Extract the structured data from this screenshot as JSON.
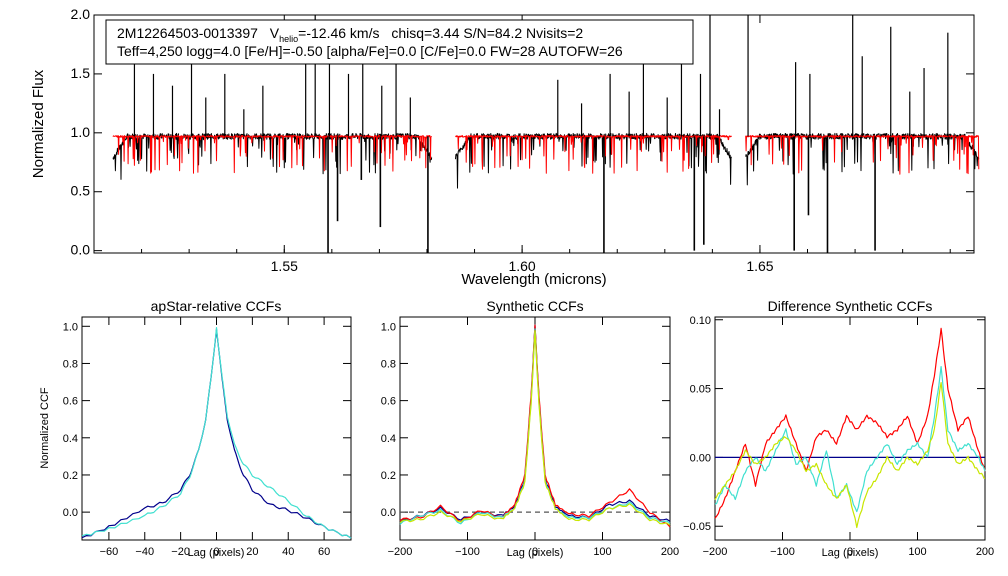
{
  "chart_data": [
    {
      "id": "spectrum",
      "type": "line",
      "xlabel": "Wavelength (microns)",
      "ylabel": "Normalized Flux",
      "xlim": [
        1.51,
        1.695
      ],
      "ylim": [
        -0.02,
        2.0
      ],
      "xticks": [
        "1.55",
        "1.60",
        "1.65"
      ],
      "yticks": [
        "0.0",
        "0.5",
        "1.0",
        "1.5",
        "2.0"
      ],
      "annotation": {
        "star": "2M12264503-0013397",
        "v_prefix": "V",
        "v_sub": "helio",
        "v_value": "=-12.46 km/s",
        "rest": "chisq=3.44  S/N=84.2  Nvisits=2",
        "params": "Teff=4,250 logg=4.0 [Fe/H]=-0.50 [alpha/Fe]=0.0 [C/Fe]=0.0 FW=28 AUTOFW=26"
      },
      "detectors": [
        [
          1.514,
          1.581
        ],
        [
          1.586,
          1.644
        ],
        [
          1.647,
          1.696
        ]
      ],
      "series": [
        {
          "name": "observed",
          "color": "#000000",
          "continuum": 0.97
        },
        {
          "name": "model",
          "color": "#ff0000",
          "continuum": 0.97
        }
      ],
      "emission_spikes": [
        1.5185,
        1.5225,
        1.5265,
        1.5305,
        1.5335,
        1.5375,
        1.5415,
        1.5455,
        1.5545,
        1.5565,
        1.5595,
        1.5635,
        1.5665,
        1.5705,
        1.5735,
        1.5765,
        1.6075,
        1.6125,
        1.6185,
        1.6225,
        1.6255,
        1.6305,
        1.6335,
        1.6375,
        1.6395,
        1.6415,
        1.6475,
        1.6575,
        1.6605,
        1.6695,
        1.6715,
        1.6775,
        1.6815,
        1.6845,
        1.6895
      ],
      "spike_heights": [
        1.9,
        1.5,
        1.4,
        1.8,
        1.3,
        1.5,
        1.2,
        1.4,
        1.7,
        2.0,
        1.6,
        1.5,
        1.8,
        1.4,
        1.7,
        1.3,
        1.45,
        1.25,
        1.5,
        1.35,
        1.9,
        1.3,
        1.7,
        1.5,
        2.0,
        1.2,
        2.0,
        1.6,
        1.5,
        2.0,
        1.65,
        1.9,
        1.35,
        1.55,
        1.85
      ],
      "absorption_dips": [
        1.5592,
        1.5612,
        1.5662,
        1.5702,
        1.5802,
        1.6172,
        1.6362,
        1.6382,
        1.6572,
        1.6602,
        1.6642,
        1.6742
      ],
      "dip_depths": [
        -0.02,
        0.25,
        0.6,
        0.2,
        -0.02,
        -0.02,
        0.0,
        0.05,
        0.0,
        0.3,
        -0.02,
        0.0
      ]
    },
    {
      "id": "apstar_ccf",
      "type": "line",
      "title": "apStar-relative CCFs",
      "xlabel": "Lag (pixels)",
      "ylabel": "Normalized CCF",
      "xlim": [
        -75,
        75
      ],
      "ylim": [
        -0.15,
        1.05
      ],
      "xticks": [
        -60,
        -40,
        -20,
        0,
        20,
        40,
        60
      ],
      "yticks": [
        0.0,
        0.2,
        0.4,
        0.6,
        0.8,
        1.0
      ],
      "series": [
        {
          "name": "ccf_a",
          "color": "#00008b",
          "x": [
            -75,
            -60,
            -40,
            -30,
            -20,
            -15,
            -10,
            -6,
            -3,
            -1,
            0,
            1,
            3,
            6,
            10,
            15,
            20,
            30,
            40,
            50,
            60,
            75
          ],
          "y": [
            -0.14,
            -0.08,
            0.02,
            0.05,
            0.12,
            0.2,
            0.33,
            0.5,
            0.72,
            0.9,
            0.99,
            0.9,
            0.72,
            0.5,
            0.33,
            0.2,
            0.12,
            0.04,
            0.01,
            -0.03,
            -0.08,
            -0.14
          ]
        },
        {
          "name": "ccf_b",
          "color": "#40e0d0",
          "x": [
            -75,
            -60,
            -40,
            -30,
            -20,
            -15,
            -10,
            -6,
            -3,
            -1,
            0,
            1,
            3,
            6,
            10,
            15,
            20,
            30,
            40,
            50,
            60,
            75
          ],
          "y": [
            -0.13,
            -0.09,
            -0.02,
            0.03,
            0.1,
            0.19,
            0.33,
            0.5,
            0.72,
            0.9,
            1.0,
            0.9,
            0.73,
            0.52,
            0.36,
            0.26,
            0.2,
            0.13,
            0.06,
            -0.02,
            -0.08,
            -0.14
          ]
        }
      ]
    },
    {
      "id": "synthetic_ccf",
      "type": "line",
      "title": "Synthetic CCFs",
      "xlabel": "Lag (pixels)",
      "xlim": [
        -200,
        200
      ],
      "ylim": [
        -0.15,
        1.05
      ],
      "xticks": [
        -200,
        -100,
        0,
        100,
        200
      ],
      "yticks": [
        0.0,
        0.2,
        0.4,
        0.6,
        0.8,
        1.0
      ],
      "baseline": 0.0,
      "series": [
        {
          "name": "s1",
          "color": "#00008b",
          "x": [
            -200,
            -170,
            -140,
            -110,
            -80,
            -50,
            -30,
            -15,
            -6,
            0,
            6,
            15,
            30,
            50,
            80,
            110,
            140,
            170,
            200
          ],
          "y": [
            -0.05,
            -0.02,
            0.02,
            -0.04,
            0.0,
            -0.02,
            0.03,
            0.18,
            0.6,
            1.0,
            0.6,
            0.18,
            0.03,
            -0.02,
            -0.03,
            0.04,
            0.06,
            -0.02,
            -0.05
          ]
        },
        {
          "name": "s2",
          "color": "#ff0000",
          "x": [
            -200,
            -170,
            -140,
            -110,
            -80,
            -50,
            -30,
            -15,
            -6,
            0,
            6,
            15,
            30,
            50,
            80,
            110,
            140,
            170,
            200
          ],
          "y": [
            -0.04,
            -0.03,
            0.03,
            -0.05,
            0.01,
            -0.03,
            0.04,
            0.2,
            0.62,
            1.0,
            0.62,
            0.2,
            0.04,
            -0.01,
            -0.02,
            0.05,
            0.12,
            0.0,
            -0.08
          ]
        },
        {
          "name": "s3",
          "color": "#40e0d0",
          "x": [
            -200,
            -170,
            -140,
            -110,
            -80,
            -50,
            -30,
            -15,
            -6,
            0,
            6,
            15,
            30,
            50,
            80,
            110,
            140,
            170,
            200
          ],
          "y": [
            -0.06,
            -0.02,
            0.01,
            -0.06,
            0.0,
            -0.03,
            0.02,
            0.17,
            0.58,
            0.98,
            0.58,
            0.17,
            0.02,
            -0.03,
            -0.03,
            0.02,
            0.05,
            -0.03,
            -0.06
          ]
        },
        {
          "name": "s4",
          "color": "#c8e600",
          "x": [
            -200,
            -170,
            -140,
            -110,
            -80,
            -50,
            -30,
            -15,
            -6,
            0,
            6,
            15,
            30,
            50,
            80,
            110,
            140,
            170,
            200
          ],
          "y": [
            -0.05,
            -0.04,
            0.0,
            -0.05,
            -0.01,
            -0.04,
            0.02,
            0.16,
            0.57,
            0.97,
            0.57,
            0.16,
            0.02,
            -0.04,
            -0.04,
            0.02,
            0.04,
            -0.04,
            -0.07
          ]
        }
      ]
    },
    {
      "id": "difference_ccf",
      "type": "line",
      "title": "Difference Synthetic CCFs",
      "xlabel": "Lag (pixels)",
      "xlim": [
        -200,
        200
      ],
      "ylim": [
        -0.06,
        0.102
      ],
      "xticks": [
        -200,
        -100,
        0,
        100,
        200
      ],
      "yticks": [
        -0.05,
        0.0,
        0.05,
        0.1
      ],
      "baseline": 0.0,
      "series": [
        {
          "name": "d_red",
          "color": "#ff0000",
          "x": [
            -200,
            -185,
            -170,
            -155,
            -140,
            -125,
            -110,
            -95,
            -80,
            -65,
            -50,
            -35,
            -20,
            -5,
            10,
            25,
            40,
            55,
            70,
            85,
            100,
            115,
            125,
            135,
            145,
            160,
            175,
            190,
            200
          ],
          "y": [
            -0.045,
            -0.03,
            -0.01,
            0.01,
            -0.02,
            0.01,
            0.02,
            0.03,
            0.01,
            -0.01,
            0.015,
            0.02,
            0.01,
            0.03,
            0.02,
            0.03,
            0.025,
            0.015,
            0.02,
            0.03,
            0.01,
            0.03,
            0.06,
            0.093,
            0.05,
            0.02,
            0.03,
            0.005,
            -0.01
          ]
        },
        {
          "name": "d_cyan",
          "color": "#40e0d0",
          "x": [
            -200,
            -185,
            -170,
            -155,
            -140,
            -125,
            -110,
            -95,
            -80,
            -65,
            -50,
            -35,
            -20,
            -5,
            10,
            25,
            40,
            55,
            70,
            85,
            100,
            115,
            125,
            135,
            145,
            160,
            175,
            190,
            200
          ],
          "y": [
            -0.035,
            -0.02,
            -0.03,
            -0.01,
            0.0,
            -0.01,
            0.005,
            0.02,
            -0.005,
            0.0,
            -0.02,
            0.005,
            -0.03,
            -0.02,
            -0.04,
            -0.01,
            0.0,
            0.01,
            -0.005,
            0.005,
            0.01,
            0.0,
            0.03,
            0.065,
            0.02,
            0.005,
            0.01,
            0.0,
            -0.01
          ]
        },
        {
          "name": "d_yellow",
          "color": "#c8e600",
          "x": [
            -200,
            -185,
            -170,
            -155,
            -140,
            -125,
            -110,
            -95,
            -80,
            -65,
            -50,
            -35,
            -20,
            -5,
            10,
            25,
            40,
            55,
            70,
            85,
            100,
            115,
            125,
            135,
            145,
            160,
            175,
            190,
            200
          ],
          "y": [
            -0.03,
            -0.02,
            -0.01,
            0.005,
            -0.005,
            0.0,
            0.01,
            0.015,
            0.005,
            -0.01,
            -0.005,
            -0.02,
            -0.03,
            -0.02,
            -0.05,
            -0.025,
            -0.015,
            0.0,
            -0.01,
            0.0,
            -0.005,
            0.005,
            0.02,
            0.055,
            0.01,
            -0.005,
            0.0,
            -0.01,
            -0.015
          ]
        }
      ]
    }
  ]
}
